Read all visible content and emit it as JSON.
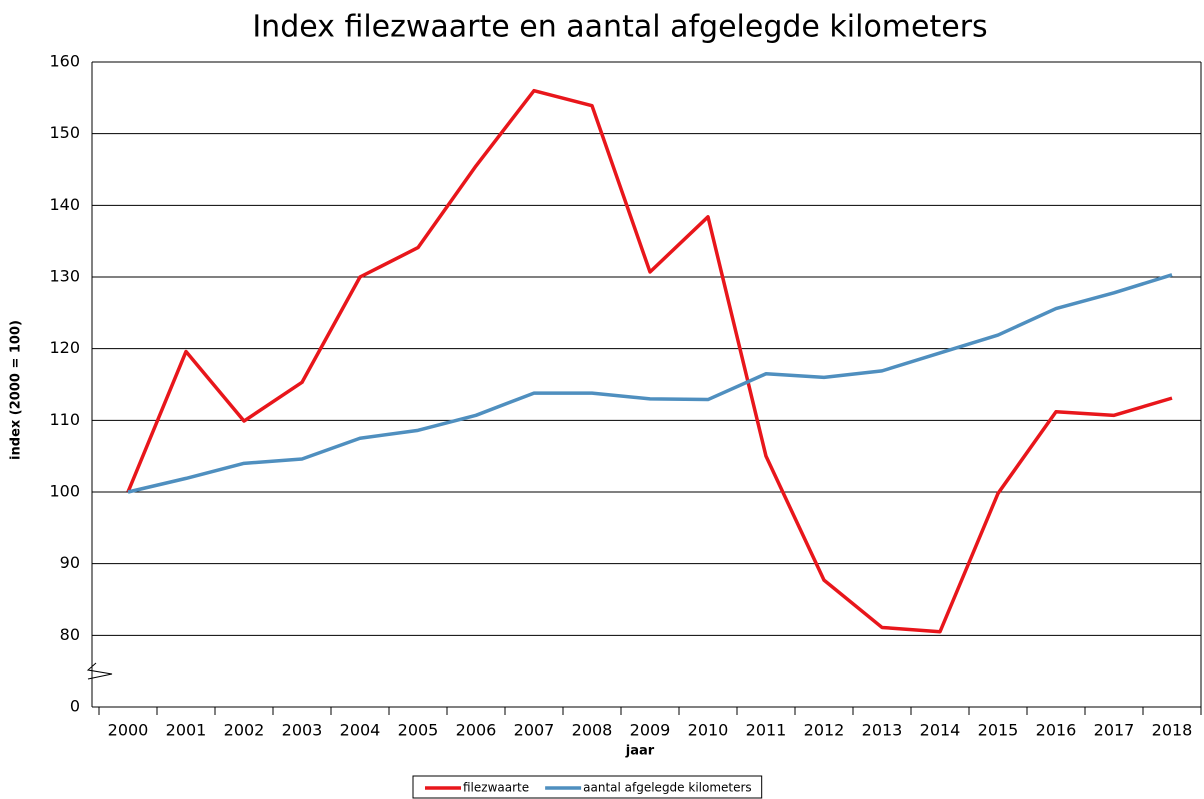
{
  "chart_data": {
    "type": "line",
    "title": "Index filezwaarte en aantal afgelegde kilometers",
    "x_label": "jaar",
    "y_label": "index (2000 = 100)",
    "categories": [
      "2000",
      "2001",
      "2002",
      "2003",
      "2004",
      "2005",
      "2006",
      "2007",
      "2008",
      "2009",
      "2010",
      "2011",
      "2012",
      "2013",
      "2014",
      "2015",
      "2016",
      "2017",
      "2018"
    ],
    "series": [
      {
        "name": "filezwaarte",
        "color": "#e8161b",
        "values": [
          100,
          119.6,
          109.9,
          115.3,
          130,
          134.1,
          145.5,
          156,
          153.9,
          130.7,
          138.4,
          105,
          87.7,
          81.1,
          80.5,
          99.8,
          111.2,
          110.7,
          113.1
        ]
      },
      {
        "name": "aantal afgelegde kilometers",
        "color": "#4f8fbf",
        "values": [
          100,
          101.9,
          104,
          104.6,
          107.5,
          108.6,
          110.7,
          113.8,
          113.8,
          113,
          112.9,
          116.5,
          116,
          116.9,
          119.4,
          121.9,
          125.6,
          127.8,
          130.3
        ]
      }
    ],
    "ylim": [
      0,
      160
    ],
    "yticks": [
      0,
      80,
      90,
      100,
      110,
      120,
      130,
      140,
      150,
      160
    ],
    "axis_break": [
      0,
      80
    ],
    "grid": true,
    "legend": "bottom"
  }
}
